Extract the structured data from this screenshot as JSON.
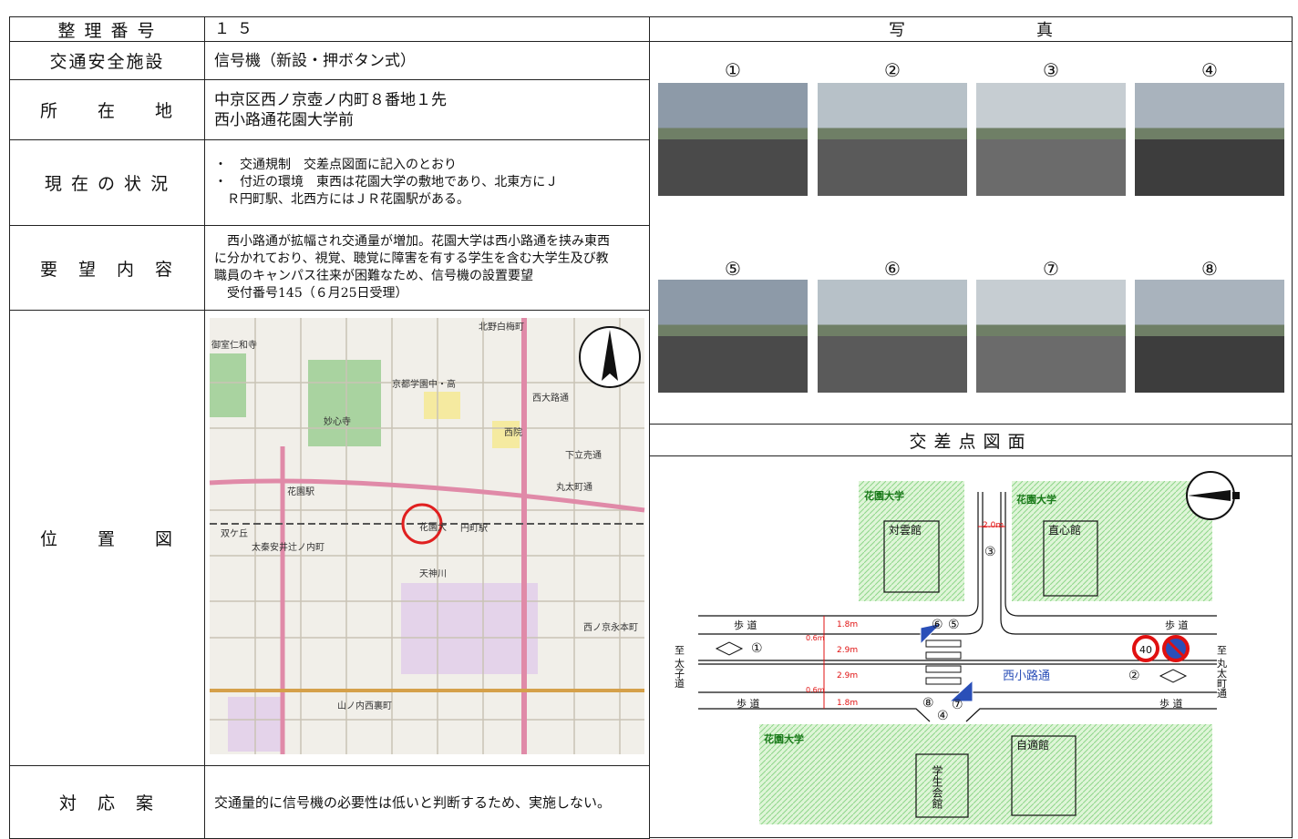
{
  "table": {
    "rows": [
      {
        "label": "整 理 番 号",
        "value": "１５"
      },
      {
        "label": "交通安全施設",
        "value": "信号機（新設・押ボタン式）"
      },
      {
        "label": "所　　在　　地",
        "value": "中京区西ノ京壺ノ内町８番地１先\n西小路通花園大学前"
      },
      {
        "label": "現 在 の 状 況",
        "value": "・　交通規制　交差点図面に記入のとおり\n・　付近の環境　東西は花園大学の敷地であり、北東方にＪ\n　Ｒ円町駅、北西方にはＪＲ花園駅がある。"
      },
      {
        "label": "要　望　内　容",
        "value": "　西小路通が拡幅され交通量が増加。花園大学は西小路通を挟み東西\nに分かれており、視覚、聴覚に障害を有する学生を含む大学生及び教\n職員のキャンパス往来が困難なため、信号機の設置要望\n　受付番号145（６月25日受理）"
      },
      {
        "label": "位　　置　　図",
        "value": ""
      },
      {
        "label": "対　応　案",
        "value": "交通量的に信号機の必要性は低いと判断するため、実施しない。"
      }
    ]
  },
  "photos": {
    "title": "写　　　　　　　　真",
    "labels": [
      "①",
      "②",
      "③",
      "④",
      "⑤",
      "⑥",
      "⑦",
      "⑧"
    ]
  },
  "map": {
    "labels": [
      "御室仁和寺",
      "北野白梅町",
      "京都学園中・高",
      "妙心寺",
      "花園駅",
      "円町駅",
      "双ケ丘",
      "太秦安井辻ノ内町",
      "花園大",
      "西院",
      "西大路通",
      "丸太町通",
      "天神川",
      "山ノ内西裏町",
      "下立売通",
      "西ノ京永本町"
    ]
  },
  "diagram": {
    "title": "交差点図面",
    "texts": [
      "花園大学",
      "花園大学",
      "花園大学",
      "対雲館",
      "直心館",
      "学生会館",
      "自適館",
      "歩 道",
      "歩 道",
      "歩 道",
      "歩 道",
      "西小路通",
      "至 太子道",
      "至 丸太町通",
      "2.0m",
      "1.8m",
      "0.6m",
      "2.9m",
      "2.9m",
      "0.6m",
      "1.8m",
      "①",
      "②",
      "③",
      "④",
      "⑤",
      "⑥",
      "⑦",
      "⑧",
      "40"
    ]
  }
}
